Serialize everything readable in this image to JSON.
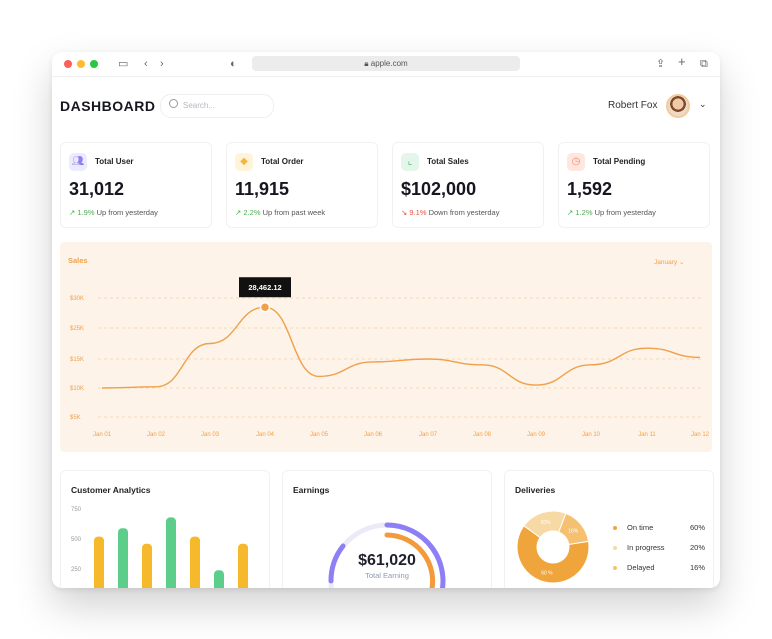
{
  "browser": {
    "url": "apple.com",
    "lock_icon": "lock-icon",
    "controls": [
      "sidebar-icon",
      "back-icon",
      "forward-icon",
      "shield-icon",
      "share-icon",
      "new-tab-icon",
      "tabs-icon"
    ]
  },
  "header": {
    "title": "DASHBOARD",
    "search_placeholder": "Search...",
    "user_name": "Robert Fox"
  },
  "stats": [
    {
      "label": "Total User",
      "value": "31,012",
      "pct": "1.9%",
      "text": "Up from yesterday",
      "direction": "up",
      "icon": "users-icon",
      "icon_bg": "#eceafd",
      "icon_color": "#8d80f0"
    },
    {
      "label": "Total Order",
      "value": "11,915",
      "pct": "2.2%",
      "text": "Up from past week",
      "direction": "up",
      "icon": "box-icon",
      "icon_bg": "#fff3d9",
      "icon_color": "#f4b63f"
    },
    {
      "label": "Total Sales",
      "value": "$102,000",
      "pct": "9.1%",
      "text": "Down from yesterday",
      "direction": "down",
      "icon": "chart-icon",
      "icon_bg": "#e4f6ea",
      "icon_color": "#4cc27b"
    },
    {
      "label": "Total Pending",
      "value": "1,592",
      "pct": "1.2%",
      "text": "Up from yesterday",
      "direction": "up",
      "icon": "clock-icon",
      "icon_bg": "#ffe7e0",
      "icon_color": "#f08a6e"
    }
  ],
  "sales": {
    "title": "Sales",
    "month_select": "January",
    "tooltip": "28,462.12"
  },
  "chart_data": [
    {
      "type": "line",
      "title": "Sales",
      "x": [
        "Jan 01",
        "Jan 02",
        "Jan 03",
        "Jan 04",
        "Jan 05",
        "Jan 06",
        "Jan 07",
        "Jan 08",
        "Jan 09",
        "Jan 10",
        "Jan 11",
        "Jan 12"
      ],
      "y_ticks": [
        "$5K",
        "$10K",
        "$15K",
        "$25K",
        "$30K"
      ],
      "series": [
        {
          "values": [
            10000,
            10200,
            20000,
            28462,
            12000,
            14500,
            15000,
            14000,
            10500,
            14000,
            18500,
            15500
          ]
        }
      ],
      "grid": true,
      "color": "#f0a04b"
    },
    {
      "type": "bar",
      "title": "Customer Analytics",
      "y_ticks": [
        "250",
        "500",
        "750"
      ],
      "values": [
        520,
        590,
        460,
        680,
        520,
        240,
        460
      ],
      "colors": [
        "#f6b92c",
        "#5ccd8b",
        "#f6b92c",
        "#5ccd8b",
        "#f6b92c",
        "#5ccd8b",
        "#f6b92c"
      ]
    },
    {
      "type": "pie",
      "title": "Deliveries",
      "labels": [
        "On time",
        "In progress",
        "Delayed"
      ],
      "values": [
        60,
        20,
        16
      ],
      "colors": [
        "#f0a53c",
        "#f7d9a5",
        "#f5c070"
      ]
    }
  ],
  "earnings": {
    "title": "Earnings",
    "amount": "$61,020",
    "caption": "Total Earning"
  },
  "deliveries": {
    "title": "Deliveries",
    "legend": [
      {
        "label": "On time",
        "value": "60%",
        "color": "#f0a53c"
      },
      {
        "label": "In progress",
        "value": "20%",
        "color": "#f7d9a5"
      },
      {
        "label": "Delayed",
        "value": "16%",
        "color": "#f5c070"
      }
    ],
    "slice_labels": [
      "60 %",
      "20%",
      "16%"
    ]
  },
  "customer_analytics": {
    "title": "Customer Analytics"
  }
}
